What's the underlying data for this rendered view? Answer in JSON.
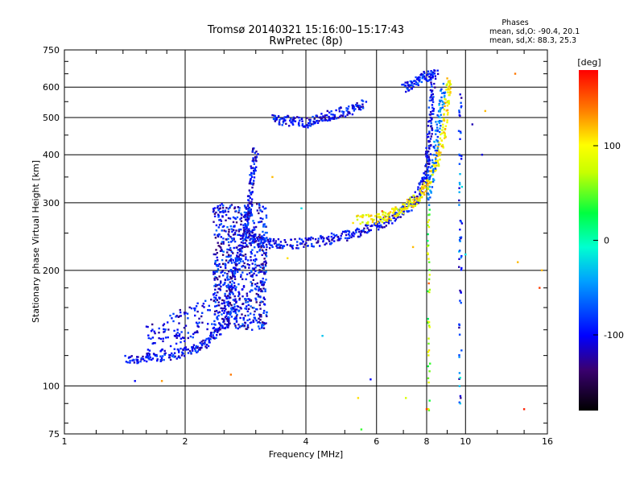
{
  "chart_data": {
    "type": "scatter",
    "title": "Tromsø 20140321 15:16:00–15:17:43",
    "subtitle": "RwPretec (8p)",
    "stats": {
      "heading": "Phases",
      "line1": "mean, sd,O: -90.4, 20.1",
      "line2": "mean, sd,X:  88.3, 25.3"
    },
    "xlabel": "Frequency [MHz]",
    "ylabel": "Stationary phase Virtual Height [km]",
    "x_scale": "log",
    "y_scale": "log",
    "xlim": [
      1,
      16
    ],
    "ylim": [
      75,
      750
    ],
    "xticks": [
      1,
      2,
      4,
      6,
      8,
      10,
      16
    ],
    "xtick_labels": [
      "1",
      "2",
      "4",
      "6",
      "8",
      "10",
      "16"
    ],
    "yticks": [
      75,
      100,
      200,
      300,
      400,
      500,
      600,
      750
    ],
    "ytick_labels": [
      "75",
      "100",
      "200",
      "300",
      "400",
      "500",
      "600",
      "750"
    ],
    "grid": true,
    "colorbar": {
      "label": "[deg]",
      "range": [
        -180,
        180
      ],
      "ticks": [
        100,
        0,
        -100
      ],
      "tick_labels": [
        "100",
        "0",
        "-100"
      ]
    },
    "traces": [
      {
        "points": [
          [
            1.42,
            117
          ],
          [
            1.6,
            118
          ],
          [
            1.8,
            120
          ],
          [
            2.0,
            123
          ],
          [
            2.2,
            127
          ],
          [
            2.35,
            135
          ],
          [
            2.5,
            145
          ],
          [
            2.7,
            160
          ]
        ],
        "phase": -100
      },
      {
        "points": [
          [
            2.5,
            155
          ],
          [
            2.6,
            180
          ],
          [
            2.7,
            210
          ],
          [
            2.8,
            240
          ],
          [
            2.85,
            270
          ],
          [
            2.9,
            300
          ],
          [
            2.95,
            360
          ],
          [
            3.0,
            415
          ]
        ],
        "phase": -100
      },
      {
        "points": [
          [
            2.9,
            250
          ],
          [
            3.0,
            240
          ],
          [
            3.2,
            236
          ],
          [
            3.5,
            234
          ],
          [
            4.0,
            236
          ],
          [
            4.5,
            240
          ],
          [
            5.0,
            246
          ],
          [
            5.5,
            253
          ],
          [
            6.0,
            262
          ],
          [
            6.5,
            272
          ],
          [
            7.0,
            285
          ],
          [
            7.5,
            305
          ],
          [
            7.8,
            330
          ],
          [
            8.0,
            365
          ],
          [
            8.1,
            420
          ],
          [
            8.2,
            500
          ],
          [
            8.3,
            620
          ]
        ],
        "phase": -100
      },
      {
        "points": [
          [
            5.3,
            270
          ],
          [
            6.0,
            272
          ],
          [
            6.5,
            280
          ],
          [
            7.0,
            290
          ],
          [
            7.5,
            305
          ],
          [
            8.0,
            330
          ],
          [
            8.5,
            380
          ],
          [
            8.8,
            450
          ],
          [
            9.0,
            550
          ],
          [
            9.1,
            630
          ]
        ],
        "phase": 100
      },
      {
        "points": [
          [
            3.3,
            495
          ],
          [
            3.6,
            490
          ],
          [
            4.0,
            485
          ],
          [
            4.3,
            495
          ],
          [
            4.7,
            510
          ],
          [
            5.2,
            525
          ],
          [
            5.6,
            545
          ]
        ],
        "phase": -100
      },
      {
        "points": [
          [
            7.0,
            600
          ],
          [
            7.5,
            620
          ],
          [
            8.0,
            640
          ],
          [
            8.5,
            650
          ]
        ],
        "phase": -90
      },
      {
        "points": [
          [
            8.1,
            300
          ],
          [
            8.4,
            400
          ],
          [
            8.6,
            500
          ],
          [
            8.8,
            600
          ]
        ],
        "phase": -60
      }
    ],
    "scattered_points": [
      [
        1.5,
        103,
        -100
      ],
      [
        1.75,
        103,
        130
      ],
      [
        2.6,
        107,
        140
      ],
      [
        3.3,
        350,
        120
      ],
      [
        3.6,
        215,
        110
      ],
      [
        3.9,
        290,
        -20
      ],
      [
        4.4,
        135,
        -30
      ],
      [
        5.4,
        93,
        110
      ],
      [
        5.5,
        77,
        40
      ],
      [
        5.8,
        104,
        -100
      ],
      [
        6.2,
        285,
        150
      ],
      [
        7.1,
        93,
        80
      ],
      [
        7.4,
        230,
        120
      ],
      [
        8.1,
        185,
        150
      ],
      [
        9.7,
        105,
        -10
      ],
      [
        9.7,
        90,
        -30
      ],
      [
        9.8,
        265,
        -110
      ],
      [
        9.8,
        330,
        -20
      ],
      [
        10.4,
        480,
        -120
      ],
      [
        11.0,
        400,
        -110
      ],
      [
        11.2,
        520,
        120
      ],
      [
        13.3,
        650,
        140
      ],
      [
        13.5,
        210,
        120
      ],
      [
        14.0,
        87,
        170
      ],
      [
        15.5,
        200,
        120
      ],
      [
        15.3,
        180,
        160
      ],
      [
        10.0,
        220,
        -20
      ],
      [
        8.0,
        87,
        160
      ]
    ]
  }
}
